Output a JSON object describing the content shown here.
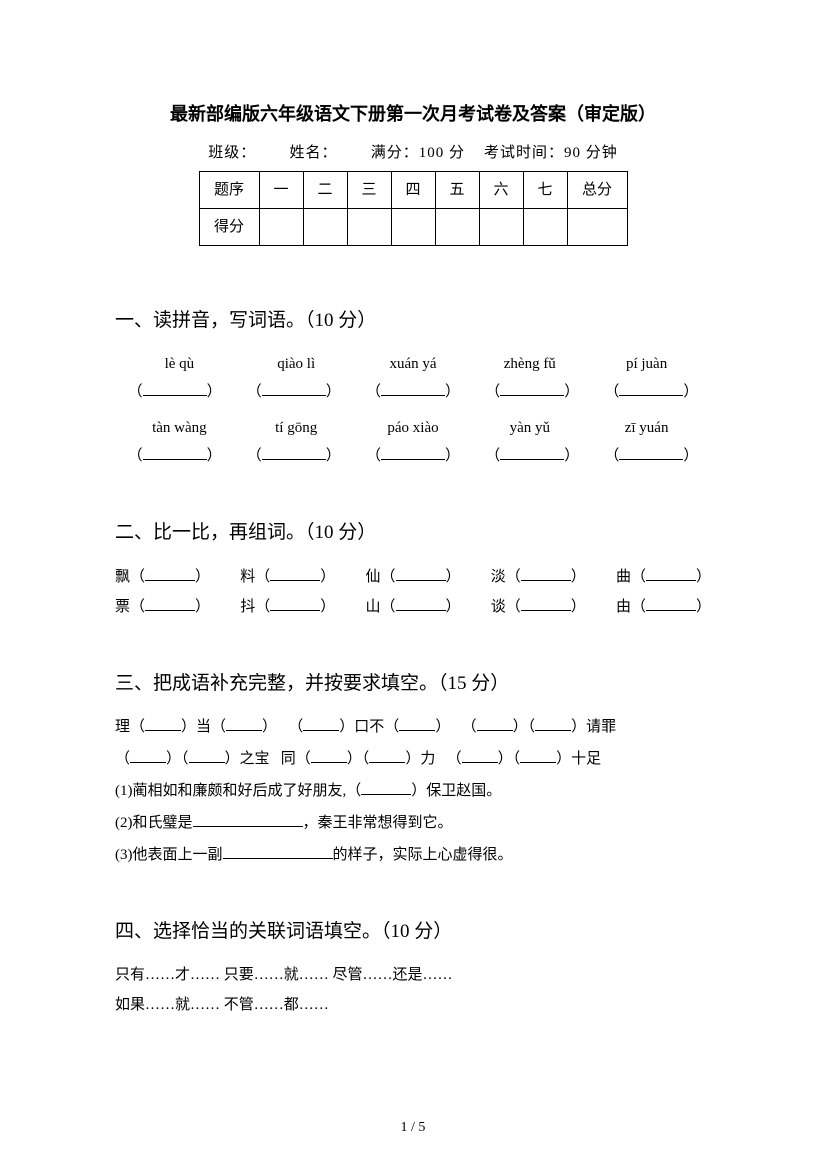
{
  "title": "最新部编版六年级语文下册第一次月考试卷及答案（审定版）",
  "info": {
    "class_label": "班级：",
    "name_label": "姓名：",
    "full_score_label": "满分：",
    "full_score_value": "100 分",
    "time_label": "考试时间：",
    "time_value": "90 分钟"
  },
  "score_table": {
    "row1": [
      "题序",
      "一",
      "二",
      "三",
      "四",
      "五",
      "六",
      "七",
      "总分"
    ],
    "row2_label": "得分"
  },
  "q1": {
    "heading": "一、读拼音，写词语。（10 分）",
    "pinyin_row1": [
      "lè qù",
      "qiào lì",
      "xuán yá",
      "zhèng fǔ",
      "pí juàn"
    ],
    "pinyin_row2": [
      "tàn wàng",
      "tí gōng",
      "páo xiào",
      "yàn yǔ",
      "zī yuán"
    ]
  },
  "q2": {
    "heading": "二、比一比，再组词。（10 分）",
    "row1": [
      "飘",
      "料",
      "仙",
      "淡",
      "曲"
    ],
    "row2": [
      "票",
      "抖",
      "山",
      "谈",
      "由"
    ]
  },
  "q3": {
    "heading": "三、把成语补充完整，并按要求填空。（15 分）",
    "line1_parts": [
      "理（",
      "）当（",
      "）",
      "（",
      "）口不（",
      "）",
      "（",
      "）（",
      "）请罪"
    ],
    "line2_parts": [
      "（",
      "）（",
      "）之宝",
      "同（",
      "）（",
      "）力",
      "（",
      "）（",
      "）十足"
    ],
    "sentence1_pre": "(1)蔺相如和廉颇和好后成了好朋友,（",
    "sentence1_post": "）保卫赵国。",
    "sentence2_pre": "(2)和氏璧是",
    "sentence2_post": "，秦王非常想得到它。",
    "sentence3_pre": "(3)他表面上一副",
    "sentence3_post": "的样子，实际上心虚得很。"
  },
  "q4": {
    "heading": "四、选择恰当的关联词语填空。（10 分）",
    "line1": "只有……才……      只要……就……      尽管……还是……",
    "line2": "如果……就……    不管……都……"
  },
  "page_num": "1 / 5"
}
